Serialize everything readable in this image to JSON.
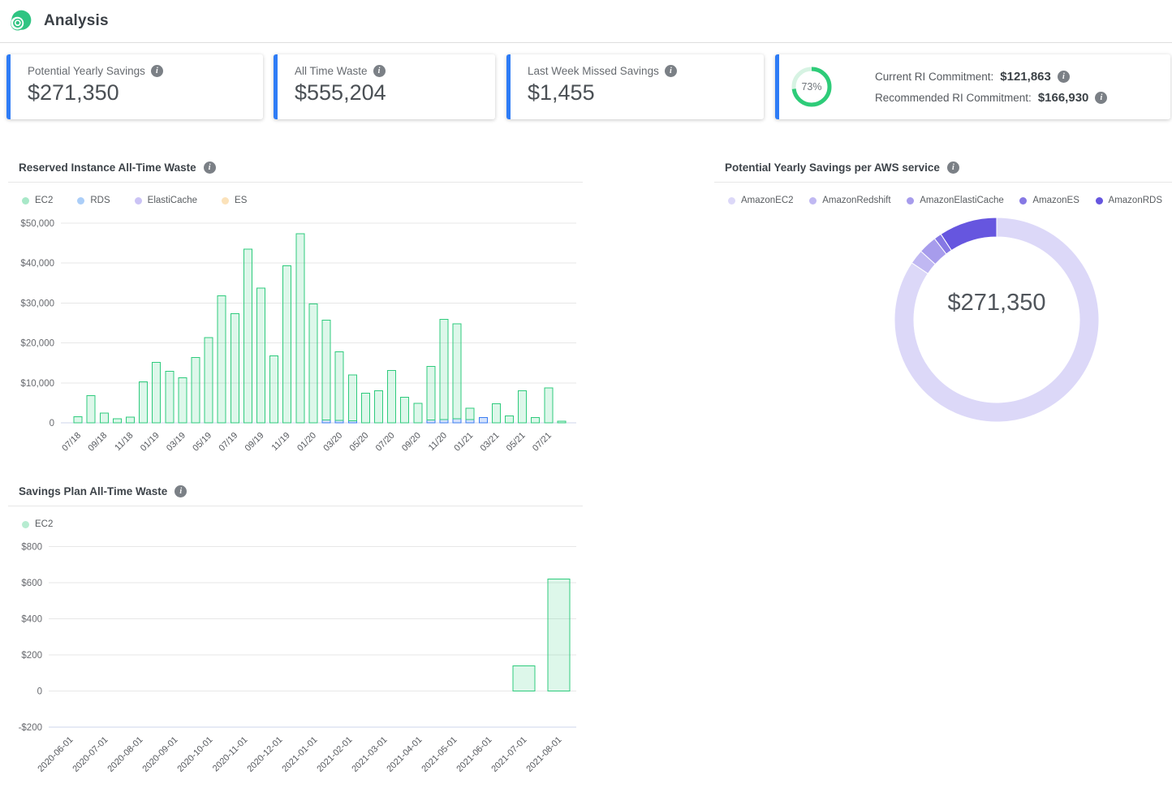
{
  "header": {
    "title": "Analysis",
    "logo_color": "#2fc482"
  },
  "stats": {
    "accent_color": "#2e7cf6",
    "cards": [
      {
        "label": "Potential Yearly Savings",
        "value": "$271,350"
      },
      {
        "label": "All Time Waste",
        "value": "$555,204"
      },
      {
        "label": "Last Week Missed Savings",
        "value": "$1,455"
      },
      {
        "gauge_percent_label": "73%",
        "gauge_value": 73,
        "gauge_color": "#2ecc79",
        "gauge_track_color": "#d7f3e3",
        "rows": [
          {
            "label": "Current RI Commitment:",
            "value": "$121,863"
          },
          {
            "label": "Recommended RI Commitment:",
            "value": "$166,930"
          }
        ]
      }
    ]
  },
  "chart_data": [
    {
      "id": "reserved_instance_all_time_waste",
      "type": "bar",
      "stacked": true,
      "title": "Reserved Instance All-Time Waste",
      "legend": [
        {
          "name": "EC2",
          "color": "#a8e8c8"
        },
        {
          "name": "RDS",
          "color": "#abcef8"
        },
        {
          "name": "ElastiCache",
          "color": "#cbc3f5"
        },
        {
          "name": "ES",
          "color": "#fbe2ba"
        }
      ],
      "categories": [
        "07/18",
        "08/18",
        "09/18",
        "10/18",
        "11/18",
        "12/18",
        "01/19",
        "02/19",
        "03/19",
        "04/19",
        "05/19",
        "06/19",
        "07/19",
        "08/19",
        "09/19",
        "10/19",
        "11/19",
        "12/19",
        "01/20",
        "02/20",
        "03/20",
        "04/20",
        "05/20",
        "06/20",
        "07/20",
        "08/20",
        "09/20",
        "10/20",
        "11/20",
        "12/20",
        "01/21",
        "02/21",
        "03/21",
        "04/21",
        "05/21",
        "06/21",
        "07/21",
        "08/21"
      ],
      "x_tick_labels": [
        "07/18",
        "09/18",
        "11/18",
        "01/19",
        "03/19",
        "05/19",
        "07/19",
        "09/19",
        "11/19",
        "01/20",
        "03/20",
        "05/20",
        "07/20",
        "09/20",
        "11/20",
        "01/21",
        "03/21",
        "05/21",
        "07/21"
      ],
      "stack_bottom_to_top": true,
      "series": [
        {
          "name": "RDS",
          "color": "#3b7df2",
          "fill": "rgba(59,125,242,0.22)",
          "values": [
            0,
            0,
            0,
            0,
            0,
            0,
            0,
            0,
            0,
            0,
            0,
            0,
            0,
            0,
            0,
            0,
            0,
            0,
            0,
            700,
            600,
            500,
            0,
            0,
            0,
            0,
            0,
            700,
            800,
            1000,
            800,
            1300,
            0,
            0,
            0,
            0,
            0,
            0
          ]
        },
        {
          "name": "EC2",
          "color": "#2fcb7d",
          "fill": "rgba(46,204,126,0.16)",
          "values": [
            1500,
            6800,
            2400,
            1000,
            1400,
            10300,
            15100,
            12900,
            11300,
            16400,
            21300,
            31800,
            27300,
            43500,
            33700,
            16800,
            39300,
            47400,
            29800,
            25000,
            17200,
            11500,
            7400,
            8000,
            13100,
            6400,
            4900,
            13400,
            25100,
            23800,
            2900,
            0,
            4800,
            1700,
            8000,
            1300,
            8700,
            400
          ]
        },
        {
          "name": "ElastiCache",
          "color": "#8f81e8",
          "fill": "rgba(143,129,232,0.2)",
          "values": [
            0,
            0,
            0,
            0,
            0,
            0,
            0,
            0,
            0,
            0,
            0,
            0,
            0,
            0,
            0,
            0,
            0,
            0,
            0,
            0,
            0,
            0,
            0,
            0,
            0,
            0,
            0,
            0,
            0,
            0,
            0,
            0,
            0,
            0,
            0,
            0,
            0,
            0
          ]
        },
        {
          "name": "ES",
          "color": "#f5b95a",
          "fill": "rgba(245,185,90,0.2)",
          "values": [
            0,
            0,
            0,
            0,
            0,
            0,
            0,
            0,
            0,
            0,
            0,
            0,
            0,
            0,
            0,
            0,
            0,
            0,
            0,
            0,
            0,
            0,
            0,
            0,
            0,
            0,
            0,
            0,
            0,
            0,
            0,
            0,
            0,
            0,
            0,
            0,
            0,
            0
          ]
        }
      ],
      "ylim": [
        0,
        50000
      ],
      "yticks": [
        {
          "v": 0,
          "label": "0"
        },
        {
          "v": 10000,
          "label": "$10,000"
        },
        {
          "v": 20000,
          "label": "$20,000"
        },
        {
          "v": 30000,
          "label": "$30,000"
        },
        {
          "v": 40000,
          "label": "$40,000"
        },
        {
          "v": 50000,
          "label": "$50,000"
        }
      ]
    },
    {
      "id": "potential_yearly_savings_per_service",
      "type": "pie",
      "title": "Potential Yearly Savings per AWS service",
      "center_label": "$271,350",
      "total": 271350,
      "slices": [
        {
          "name": "AmazonEC2",
          "value": 229020,
          "percent": 84.4,
          "color": "#dcd8f8"
        },
        {
          "name": "AmazonRedshift",
          "value": 6240,
          "percent": 2.3,
          "color": "#c0b8f2"
        },
        {
          "name": "AmazonElastiCache",
          "value": 7870,
          "percent": 2.9,
          "color": "#a79cec"
        },
        {
          "name": "AmazonES",
          "value": 3260,
          "percent": 1.2,
          "color": "#8678e4"
        },
        {
          "name": "AmazonRDS",
          "value": 24960,
          "percent": 9.2,
          "color": "#6656df"
        }
      ]
    },
    {
      "id": "savings_plan_all_time_waste",
      "type": "bar",
      "stacked": false,
      "title": "Savings Plan All-Time Waste",
      "legend": [
        {
          "name": "EC2",
          "color": "#b7ecd1"
        }
      ],
      "categories": [
        "2020-06-01",
        "2020-07-01",
        "2020-08-01",
        "2020-09-01",
        "2020-10-01",
        "2020-11-01",
        "2020-12-01",
        "2021-01-01",
        "2021-02-01",
        "2021-03-01",
        "2021-04-01",
        "2021-05-01",
        "2021-06-01",
        "2021-07-01",
        "2021-08-01"
      ],
      "series": [
        {
          "name": "EC2",
          "color": "#2fcb7d",
          "fill": "rgba(46,204,126,0.16)",
          "values": [
            0,
            0,
            0,
            0,
            0,
            0,
            0,
            0,
            0,
            0,
            0,
            0,
            0,
            140,
            620
          ]
        }
      ],
      "ylim": [
        -200,
        800
      ],
      "yticks": [
        {
          "v": 800,
          "label": "$800"
        },
        {
          "v": 600,
          "label": "$600"
        },
        {
          "v": 400,
          "label": "$400"
        },
        {
          "v": 200,
          "label": "$200"
        },
        {
          "v": 0,
          "label": "0"
        },
        {
          "v": -200,
          "label": "-$200"
        }
      ]
    }
  ]
}
